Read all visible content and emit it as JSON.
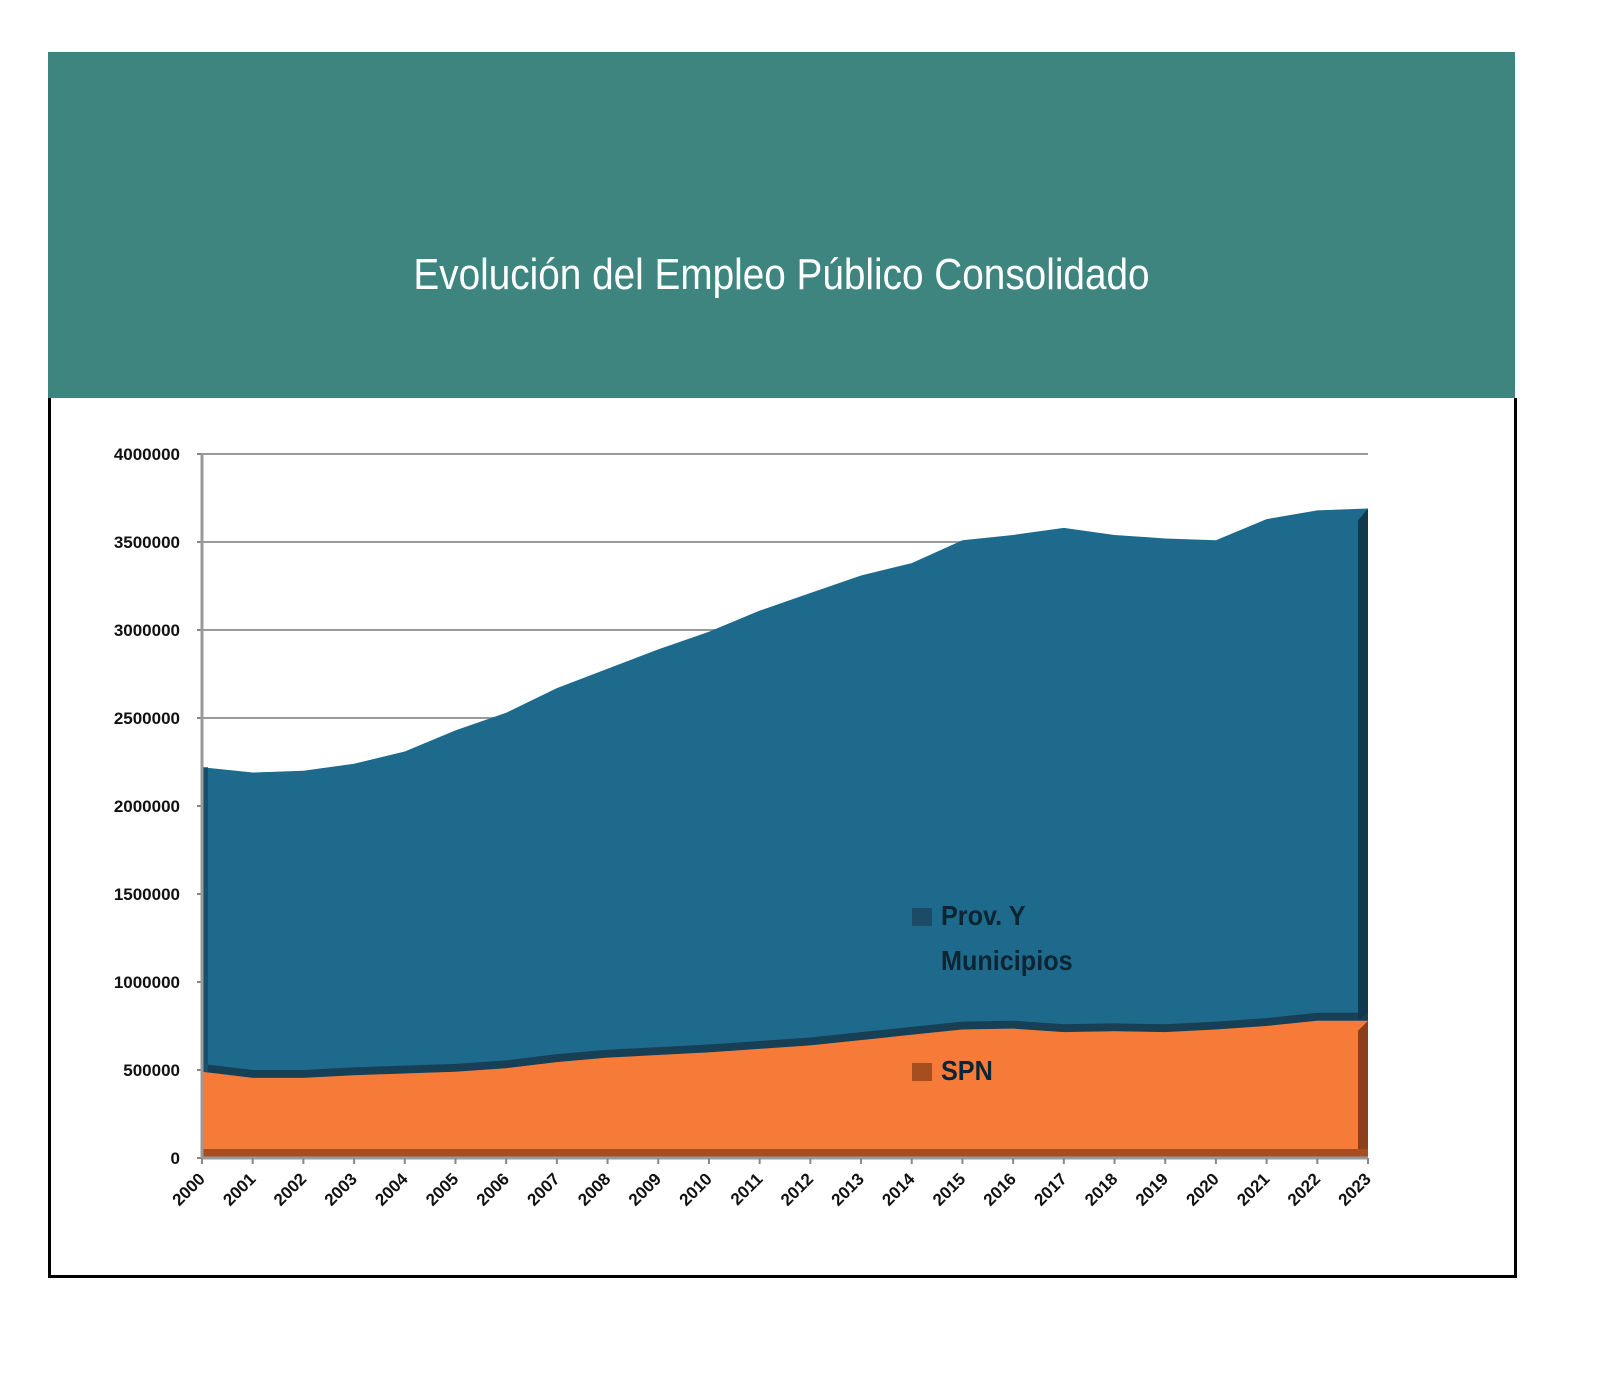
{
  "chart_data": {
    "type": "area",
    "stacked": true,
    "title": "Evolución del Empleo Público Consolidado",
    "xlabel": "",
    "ylabel": "",
    "ylim": [
      0,
      4000000
    ],
    "yticks": [
      "0",
      "500000",
      "1000000",
      "1500000",
      "2000000",
      "2500000",
      "3000000",
      "3500000",
      "4000000"
    ],
    "categories": [
      "2000",
      "2001",
      "2002",
      "2003",
      "2004",
      "2005",
      "2006",
      "2007",
      "2008",
      "2009",
      "2010",
      "2011",
      "2012",
      "2013",
      "2014",
      "2015",
      "2016",
      "2017",
      "2018",
      "2019",
      "2020",
      "2021",
      "2022",
      "2023"
    ],
    "series": [
      {
        "name": "SPN",
        "color": "#f77b38",
        "values": [
          490000,
          455000,
          455000,
          470000,
          480000,
          490000,
          510000,
          545000,
          570000,
          585000,
          600000,
          620000,
          640000,
          670000,
          700000,
          730000,
          735000,
          715000,
          720000,
          715000,
          730000,
          750000,
          780000,
          780000
        ]
      },
      {
        "name": "Prov. Y Municipios",
        "color": "#1e6a8c",
        "values": [
          1730000,
          1735000,
          1745000,
          1770000,
          1830000,
          1940000,
          2020000,
          2125000,
          2210000,
          2305000,
          2390000,
          2490000,
          2570000,
          2640000,
          2680000,
          2780000,
          2805000,
          2865000,
          2820000,
          2805000,
          2780000,
          2880000,
          2900000,
          2910000
        ]
      }
    ],
    "grid": true,
    "legend": "inside-bottom-right",
    "legend_lines": [
      [
        "Prov. Y",
        "Municipios"
      ],
      [
        "SPN"
      ]
    ]
  }
}
